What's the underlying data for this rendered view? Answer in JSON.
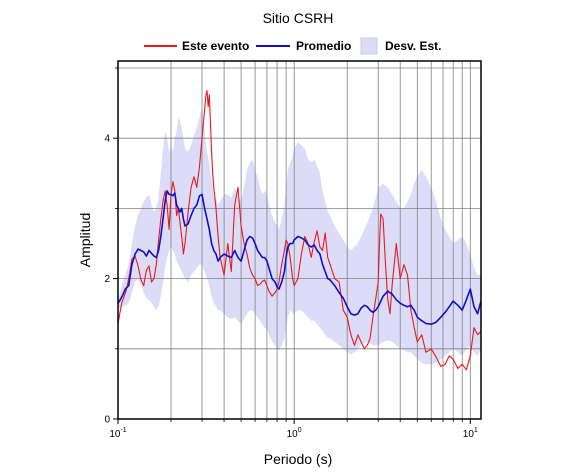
{
  "chart_data": {
    "type": "line",
    "title": "Sitio CSRH",
    "xlabel": "Periodo (s)",
    "ylabel": "Amplitud",
    "x_scale": "log",
    "xlim": [
      0.1,
      11.5
    ],
    "ylim": [
      0,
      5.1
    ],
    "grid": true,
    "legend_placement": "top",
    "x_ticks": [
      {
        "value": 0.1,
        "base": "10",
        "exp": "-1"
      },
      {
        "value": 1,
        "base": "10",
        "exp": "0"
      },
      {
        "value": 10,
        "base": "10",
        "exp": "1"
      }
    ],
    "y_ticks": [
      {
        "value": 0,
        "label": "0"
      },
      {
        "value": 2,
        "label": "2"
      },
      {
        "value": 4,
        "label": "4"
      }
    ],
    "colors": {
      "este_evento": "#e8191c",
      "promedio": "#1010c8",
      "desv_fill": "#dcdcf8",
      "desv_edge": "#c8c8ee",
      "grid": "#808080"
    },
    "series": [
      {
        "name": "Este evento",
        "x": [
          0.1,
          0.102,
          0.105,
          0.108,
          0.111,
          0.114,
          0.117,
          0.12,
          0.125,
          0.13,
          0.135,
          0.14,
          0.145,
          0.15,
          0.155,
          0.16,
          0.165,
          0.17,
          0.175,
          0.18,
          0.185,
          0.19,
          0.195,
          0.2,
          0.205,
          0.21,
          0.215,
          0.22,
          0.225,
          0.23,
          0.235,
          0.24,
          0.25,
          0.26,
          0.27,
          0.28,
          0.29,
          0.3,
          0.31,
          0.315,
          0.32,
          0.325,
          0.33,
          0.335,
          0.34,
          0.345,
          0.35,
          0.36,
          0.37,
          0.38,
          0.4,
          0.42,
          0.44,
          0.46,
          0.48,
          0.5,
          0.52,
          0.54,
          0.56,
          0.58,
          0.6,
          0.62,
          0.64,
          0.66,
          0.68,
          0.7,
          0.72,
          0.75,
          0.78,
          0.8,
          0.82,
          0.85,
          0.88,
          0.9,
          0.92,
          0.95,
          0.98,
          1.0,
          1.05,
          1.1,
          1.15,
          1.2,
          1.25,
          1.3,
          1.35,
          1.4,
          1.45,
          1.5,
          1.55,
          1.6,
          1.7,
          1.8,
          1.9,
          2.0,
          2.1,
          2.2,
          2.3,
          2.4,
          2.5,
          2.6,
          2.7,
          2.8,
          2.9,
          3.0,
          3.05,
          3.1,
          3.2,
          3.3,
          3.4,
          3.5,
          3.6,
          3.8,
          4.0,
          4.2,
          4.4,
          4.6,
          4.8,
          5.0,
          5.3,
          5.6,
          6.0,
          6.4,
          6.8,
          7.2,
          7.6,
          8.0,
          8.5,
          9.0,
          9.5,
          10.0,
          10.5,
          11.0,
          11.5
        ],
        "y": [
          1.35,
          1.48,
          1.65,
          1.74,
          1.82,
          1.95,
          2.1,
          2.28,
          2.32,
          2.18,
          1.98,
          1.9,
          2.12,
          2.18,
          1.95,
          2.0,
          2.2,
          2.55,
          2.85,
          3.1,
          3.25,
          3.05,
          2.7,
          3.2,
          3.38,
          3.25,
          2.9,
          3.0,
          2.8,
          2.6,
          2.35,
          2.5,
          2.95,
          3.3,
          3.45,
          3.3,
          3.6,
          4.0,
          4.4,
          4.6,
          4.68,
          4.45,
          4.62,
          4.2,
          3.8,
          3.5,
          3.3,
          3.0,
          2.6,
          2.3,
          2.05,
          2.5,
          2.1,
          3.05,
          3.3,
          2.75,
          2.5,
          2.35,
          2.15,
          2.05,
          2.0,
          1.9,
          1.92,
          1.96,
          1.98,
          1.9,
          1.82,
          1.75,
          1.8,
          1.85,
          1.95,
          2.2,
          2.4,
          2.55,
          2.5,
          2.3,
          2.0,
          1.9,
          2.0,
          2.35,
          2.6,
          2.5,
          2.3,
          2.52,
          2.68,
          2.45,
          2.4,
          2.65,
          2.3,
          2.2,
          2.0,
          1.95,
          1.55,
          1.45,
          1.2,
          1.05,
          1.2,
          1.1,
          1.0,
          1.05,
          1.15,
          1.45,
          1.7,
          1.95,
          2.5,
          2.92,
          2.85,
          2.2,
          1.7,
          1.5,
          1.9,
          2.5,
          2.0,
          2.2,
          2.05,
          1.55,
          1.3,
          1.1,
          1.2,
          0.95,
          1.0,
          0.88,
          0.75,
          0.78,
          0.9,
          0.85,
          0.72,
          0.78,
          0.7,
          0.9,
          1.3,
          1.2,
          1.25
        ]
      },
      {
        "name": "Promedio",
        "x": [
          0.1,
          0.103,
          0.106,
          0.11,
          0.115,
          0.12,
          0.125,
          0.13,
          0.135,
          0.14,
          0.145,
          0.15,
          0.155,
          0.16,
          0.165,
          0.17,
          0.175,
          0.18,
          0.185,
          0.19,
          0.195,
          0.2,
          0.205,
          0.21,
          0.215,
          0.22,
          0.225,
          0.23,
          0.235,
          0.24,
          0.25,
          0.26,
          0.27,
          0.28,
          0.29,
          0.3,
          0.31,
          0.32,
          0.33,
          0.34,
          0.35,
          0.36,
          0.37,
          0.38,
          0.4,
          0.42,
          0.44,
          0.46,
          0.48,
          0.5,
          0.52,
          0.54,
          0.56,
          0.58,
          0.6,
          0.62,
          0.64,
          0.66,
          0.68,
          0.7,
          0.72,
          0.75,
          0.78,
          0.8,
          0.82,
          0.85,
          0.88,
          0.9,
          0.92,
          0.95,
          0.98,
          1.0,
          1.05,
          1.1,
          1.15,
          1.2,
          1.25,
          1.3,
          1.35,
          1.4,
          1.45,
          1.5,
          1.55,
          1.6,
          1.7,
          1.8,
          1.9,
          2.0,
          2.1,
          2.2,
          2.3,
          2.4,
          2.5,
          2.6,
          2.7,
          2.8,
          2.9,
          3.0,
          3.2,
          3.4,
          3.6,
          3.8,
          4.0,
          4.2,
          4.4,
          4.6,
          4.8,
          5.0,
          5.3,
          5.6,
          6.0,
          6.4,
          6.8,
          7.2,
          7.6,
          8.0,
          8.5,
          9.0,
          9.5,
          10.0,
          10.5,
          11.0,
          11.5
        ],
        "y": [
          1.65,
          1.7,
          1.76,
          1.85,
          1.9,
          2.2,
          2.35,
          2.42,
          2.4,
          2.38,
          2.32,
          2.4,
          2.36,
          2.32,
          2.3,
          2.4,
          2.6,
          2.85,
          3.1,
          3.25,
          3.2,
          3.2,
          3.18,
          3.22,
          3.05,
          3.0,
          2.95,
          3.0,
          2.85,
          2.75,
          2.78,
          2.9,
          3.0,
          3.05,
          3.18,
          3.2,
          3.0,
          2.85,
          2.7,
          2.5,
          2.4,
          2.35,
          2.25,
          2.3,
          2.35,
          2.32,
          2.3,
          2.4,
          2.3,
          2.25,
          2.4,
          2.55,
          2.6,
          2.58,
          2.5,
          2.4,
          2.35,
          2.3,
          2.3,
          2.25,
          2.15,
          2.0,
          1.95,
          1.88,
          1.85,
          1.95,
          2.1,
          2.3,
          2.45,
          2.5,
          2.5,
          2.55,
          2.6,
          2.58,
          2.55,
          2.48,
          2.45,
          2.48,
          2.4,
          2.35,
          2.2,
          2.1,
          2.0,
          1.98,
          1.9,
          1.8,
          1.72,
          1.6,
          1.5,
          1.48,
          1.5,
          1.58,
          1.62,
          1.6,
          1.55,
          1.52,
          1.55,
          1.6,
          1.75,
          1.82,
          1.78,
          1.7,
          1.65,
          1.62,
          1.6,
          1.62,
          1.55,
          1.45,
          1.4,
          1.36,
          1.35,
          1.38,
          1.45,
          1.52,
          1.6,
          1.68,
          1.62,
          1.55,
          1.7,
          1.85,
          1.6,
          1.5,
          1.68
        ]
      },
      {
        "name": "Desv. Est.",
        "x": [
          0.1,
          0.103,
          0.106,
          0.11,
          0.115,
          0.12,
          0.125,
          0.13,
          0.135,
          0.14,
          0.145,
          0.15,
          0.155,
          0.16,
          0.165,
          0.17,
          0.175,
          0.18,
          0.185,
          0.19,
          0.195,
          0.2,
          0.205,
          0.21,
          0.215,
          0.22,
          0.225,
          0.23,
          0.235,
          0.24,
          0.25,
          0.26,
          0.27,
          0.28,
          0.29,
          0.3,
          0.31,
          0.32,
          0.33,
          0.34,
          0.35,
          0.36,
          0.37,
          0.38,
          0.4,
          0.42,
          0.44,
          0.46,
          0.48,
          0.5,
          0.52,
          0.54,
          0.56,
          0.58,
          0.6,
          0.62,
          0.64,
          0.66,
          0.68,
          0.7,
          0.72,
          0.75,
          0.78,
          0.8,
          0.82,
          0.85,
          0.88,
          0.9,
          0.92,
          0.95,
          0.98,
          1.0,
          1.05,
          1.1,
          1.15,
          1.2,
          1.25,
          1.3,
          1.35,
          1.4,
          1.45,
          1.5,
          1.55,
          1.6,
          1.7,
          1.8,
          1.9,
          2.0,
          2.1,
          2.2,
          2.3,
          2.4,
          2.5,
          2.6,
          2.7,
          2.8,
          2.9,
          3.0,
          3.2,
          3.4,
          3.6,
          3.8,
          4.0,
          4.2,
          4.4,
          4.6,
          4.8,
          5.0,
          5.3,
          5.6,
          6.0,
          6.4,
          6.8,
          7.2,
          7.6,
          8.0,
          8.5,
          9.0,
          9.5,
          10.0,
          10.5,
          11.0,
          11.5
        ],
        "upper": [
          1.7,
          1.82,
          1.95,
          2.05,
          2.2,
          2.5,
          2.75,
          2.9,
          3.0,
          3.1,
          3.15,
          3.2,
          3.05,
          2.95,
          3.0,
          3.15,
          3.5,
          3.85,
          4.1,
          4.0,
          3.8,
          3.9,
          3.8,
          4.0,
          4.1,
          4.3,
          4.25,
          4.15,
          4.0,
          3.85,
          3.8,
          3.9,
          4.05,
          4.15,
          4.3,
          4.45,
          4.1,
          3.8,
          3.65,
          3.4,
          3.2,
          3.15,
          3.05,
          3.1,
          3.2,
          3.2,
          3.15,
          3.3,
          3.15,
          3.1,
          3.3,
          3.55,
          3.65,
          3.7,
          3.55,
          3.45,
          3.3,
          3.2,
          3.25,
          3.2,
          3.05,
          2.9,
          2.8,
          2.75,
          2.7,
          2.85,
          3.05,
          3.3,
          3.55,
          3.65,
          3.75,
          3.85,
          3.95,
          3.9,
          3.85,
          3.7,
          3.65,
          3.7,
          3.6,
          3.5,
          3.25,
          3.1,
          2.95,
          2.9,
          2.75,
          2.65,
          2.55,
          2.45,
          2.4,
          2.45,
          2.5,
          2.6,
          2.7,
          2.8,
          2.9,
          3.0,
          3.15,
          3.3,
          3.35,
          3.3,
          3.2,
          3.1,
          3.0,
          3.0,
          3.1,
          3.2,
          3.35,
          3.45,
          3.55,
          3.45,
          3.3,
          3.1,
          2.85,
          2.7,
          2.6,
          2.5,
          2.55,
          2.6,
          2.5,
          2.35,
          2.15,
          2.05,
          2.05
        ],
        "lower": [
          1.55,
          1.58,
          1.6,
          1.62,
          1.65,
          1.8,
          1.95,
          2.0,
          1.92,
          1.8,
          1.72,
          1.7,
          1.65,
          1.6,
          1.55,
          1.6,
          1.75,
          1.95,
          2.15,
          2.3,
          2.4,
          2.45,
          2.4,
          2.35,
          2.25,
          2.2,
          2.15,
          2.1,
          2.05,
          2.0,
          1.95,
          2.05,
          2.1,
          2.15,
          2.2,
          2.2,
          2.1,
          2.0,
          1.9,
          1.75,
          1.65,
          1.6,
          1.55,
          1.55,
          1.5,
          1.45,
          1.42,
          1.45,
          1.4,
          1.35,
          1.42,
          1.5,
          1.55,
          1.55,
          1.5,
          1.45,
          1.4,
          1.35,
          1.3,
          1.28,
          1.2,
          1.1,
          1.05,
          1.0,
          0.98,
          1.05,
          1.15,
          1.3,
          1.45,
          1.55,
          1.5,
          1.5,
          1.55,
          1.55,
          1.5,
          1.45,
          1.4,
          1.4,
          1.35,
          1.3,
          1.25,
          1.2,
          1.15,
          1.15,
          1.1,
          1.05,
          1.0,
          0.95,
          0.92,
          0.95,
          1.0,
          1.05,
          1.08,
          1.1,
          1.08,
          1.05,
          1.05,
          1.05,
          1.1,
          1.12,
          1.1,
          1.05,
          1.0,
          0.98,
          0.95,
          0.95,
          0.9,
          0.85,
          0.8,
          0.78,
          0.78,
          0.8,
          0.85,
          0.9,
          0.95,
          1.0,
          0.95,
          0.9,
          0.98,
          1.05,
          0.95,
          0.9,
          1.0
        ]
      }
    ]
  }
}
